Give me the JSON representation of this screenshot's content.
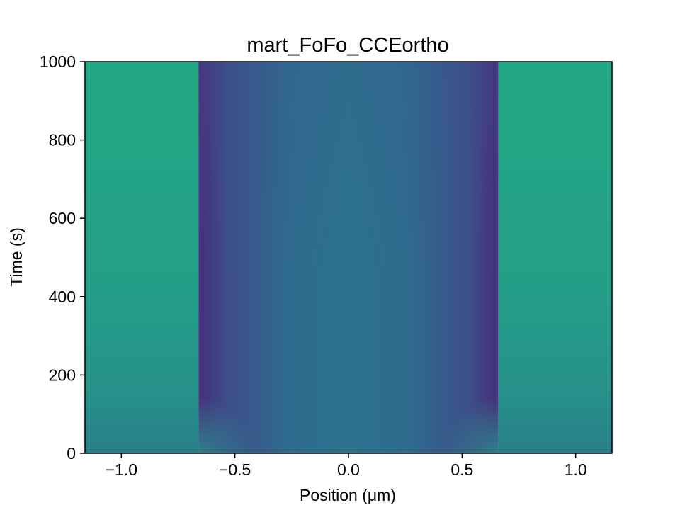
{
  "chart_data": {
    "type": "heatmap",
    "title": "mart_FoFo_CCEortho",
    "xlabel": "Position (μm)",
    "ylabel": "Time (s)",
    "xlim": [
      -1.16,
      1.16
    ],
    "ylim": [
      0,
      1000
    ],
    "x_ticks": [
      -1.0,
      -0.5,
      0.0,
      0.5,
      1.0
    ],
    "x_tick_labels": [
      "−1.0",
      "−0.5",
      "0.0",
      "0.5",
      "1.0"
    ],
    "y_ticks": [
      0,
      200,
      400,
      600,
      800,
      1000
    ],
    "y_tick_labels": [
      "0",
      "200",
      "400",
      "600",
      "800",
      "1000"
    ],
    "colormap": "viridis",
    "regions": [
      {
        "name": "outer-left",
        "x_range": [
          -1.16,
          -0.66
        ]
      },
      {
        "name": "inner",
        "x_range": [
          -0.66,
          0.66
        ]
      },
      {
        "name": "outer-right",
        "x_range": [
          0.66,
          1.16
        ]
      }
    ],
    "colors": {
      "outer_top": "#22a884",
      "outer_bottom": "#287e8b",
      "inner_center": "#2c728e",
      "inner_edge": "#472f7d",
      "inner_corner_bottom": "#2a8a8b"
    },
    "grid": false
  }
}
